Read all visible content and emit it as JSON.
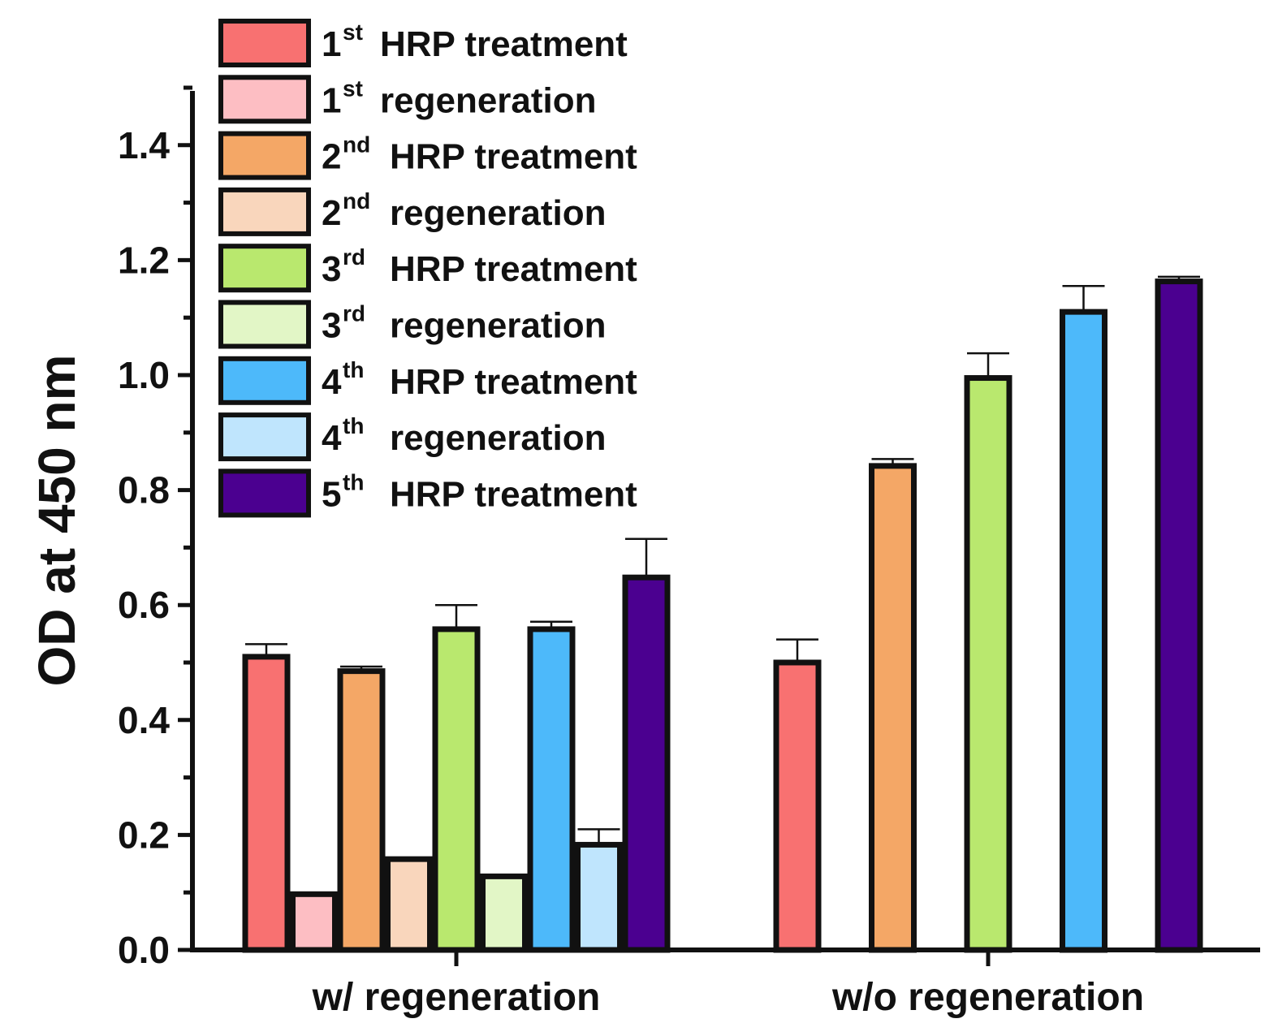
{
  "chart_data": {
    "type": "bar",
    "title": "",
    "xlabel": "",
    "ylabel": "OD at 450 nm",
    "ylim": [
      0,
      1.5
    ],
    "yticks": [
      "0.0",
      "0.2",
      "0.4",
      "0.6",
      "0.8",
      "1.0",
      "1.2",
      "1.4"
    ],
    "categories": [
      "w/ regeneration",
      "w/o regeneration"
    ],
    "legend_position": "top-left",
    "series": [
      {
        "key": "t1",
        "ordinal": "1",
        "sup": "st",
        "name": "HRP treatment",
        "color": "#F87171",
        "values": [
          0.51,
          0.5
        ],
        "errors": [
          0.022,
          0.04
        ]
      },
      {
        "key": "r1",
        "ordinal": "1",
        "sup": "st",
        "name": "regeneration",
        "color": "#FDBEC3",
        "values": [
          0.097,
          null
        ],
        "errors": [
          0,
          null
        ]
      },
      {
        "key": "t2",
        "ordinal": "2",
        "sup": "nd",
        "name": "HRP treatment",
        "color": "#F4A766",
        "values": [
          0.485,
          0.842
        ],
        "errors": [
          0.008,
          0.012
        ]
      },
      {
        "key": "r2",
        "ordinal": "2",
        "sup": "nd",
        "name": "regeneration",
        "color": "#F9D6BC",
        "values": [
          0.158,
          null
        ],
        "errors": [
          0,
          null
        ]
      },
      {
        "key": "t3",
        "ordinal": "3",
        "sup": "rd",
        "name": "HRP treatment",
        "color": "#B9E86E",
        "values": [
          0.558,
          0.995
        ],
        "errors": [
          0.042,
          0.043
        ]
      },
      {
        "key": "r3",
        "ordinal": "3",
        "sup": "rd",
        "name": "regeneration",
        "color": "#E2F6C6",
        "values": [
          0.128,
          null
        ],
        "errors": [
          0,
          null
        ]
      },
      {
        "key": "t4",
        "ordinal": "4",
        "sup": "th",
        "name": "HRP treatment",
        "color": "#4DB9FA",
        "values": [
          0.558,
          1.11
        ],
        "errors": [
          0.013,
          0.045
        ]
      },
      {
        "key": "r4",
        "ordinal": "4",
        "sup": "th",
        "name": "regeneration",
        "color": "#BFE5FD",
        "values": [
          0.183,
          null
        ],
        "errors": [
          0.027,
          null
        ]
      },
      {
        "key": "t5",
        "ordinal": "5",
        "sup": "th",
        "name": "HRP treatment",
        "color": "#4B0090",
        "values": [
          0.648,
          1.163
        ],
        "errors": [
          0.067,
          0.008
        ]
      }
    ]
  }
}
